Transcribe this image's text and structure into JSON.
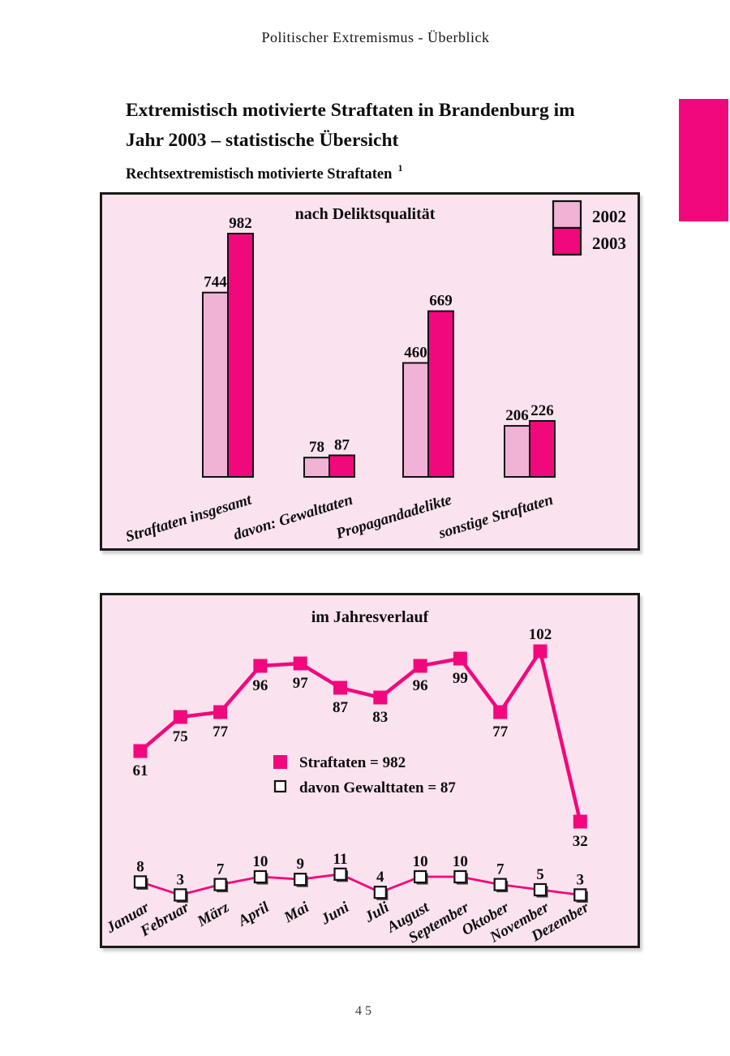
{
  "page": {
    "header": "Politischer Extremismus - Überblick",
    "page_number": "45"
  },
  "title": {
    "line1": "Extremistisch motivierte Straftaten in Brandenburg im",
    "line2": "Jahr 2003 – statistische Übersicht",
    "subtitle": "Rechtsextremistisch motivierte Straftaten",
    "footnote_marker": "1"
  },
  "colors": {
    "magenta": "#F2087D",
    "light_pink": "#F0B3D6",
    "chart_bg": "#FAE2EE",
    "outline": "#111111"
  },
  "chart_data": [
    {
      "type": "bar",
      "title": "nach Deliktsqualität",
      "categories": [
        "Straftaten insgesamt",
        "davon: Gewalttaten",
        "Propagandadelikte",
        "sonstige Straftaten"
      ],
      "series": [
        {
          "name": "2002",
          "color": "#F0B3D6",
          "values": [
            744,
            78,
            460,
            206
          ]
        },
        {
          "name": "2003",
          "color": "#F2087D",
          "values": [
            982,
            87,
            669,
            226
          ]
        }
      ],
      "legend_position": "top-right",
      "ylim": [
        0,
        1030
      ],
      "grid": false,
      "axes_shown": false
    },
    {
      "type": "line",
      "title": "im Jahresverlauf",
      "categories": [
        "Januar",
        "Februar",
        "März",
        "April",
        "Mai",
        "Juni",
        "Juli",
        "August",
        "September",
        "Oktober",
        "November",
        "Dezember"
      ],
      "series": [
        {
          "name": "Straftaten = 982",
          "marker": "filled-square",
          "color": "#F2087D",
          "values": [
            61,
            75,
            77,
            96,
            97,
            87,
            83,
            96,
            99,
            77,
            102,
            32
          ]
        },
        {
          "name": "davon Gewalttaten =  87",
          "marker": "open-square",
          "color": "#F2087D",
          "values": [
            8,
            3,
            7,
            10,
            9,
            11,
            4,
            10,
            10,
            7,
            5,
            3
          ]
        }
      ],
      "legend_position": "center",
      "grid": false,
      "axes_shown": false
    }
  ]
}
